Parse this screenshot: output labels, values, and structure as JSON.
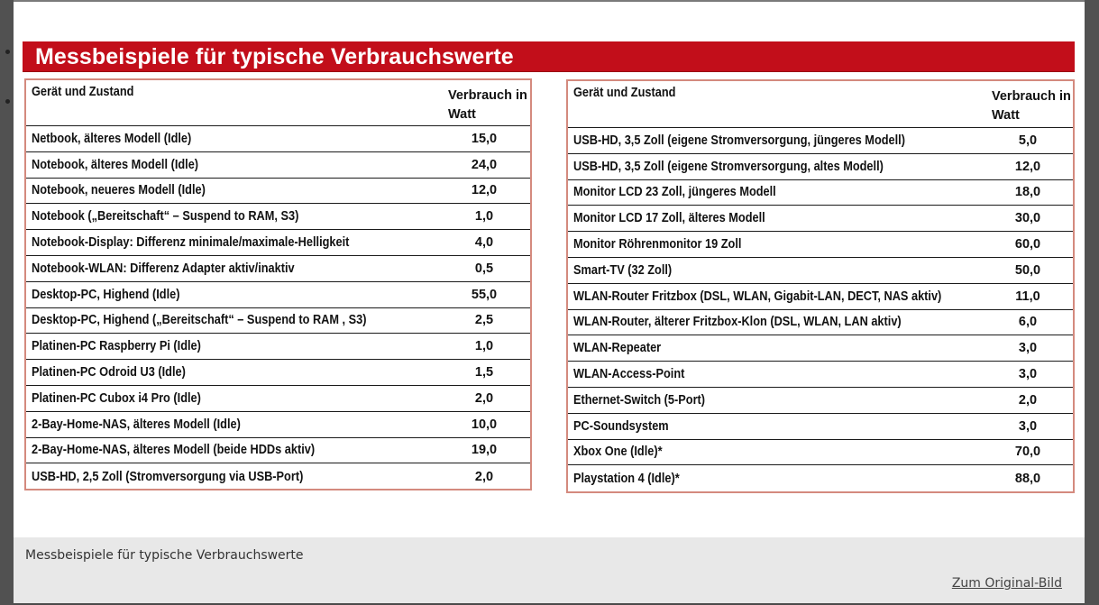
{
  "figure": {
    "title": "Messbeispiele für typische Verbrauchswerte"
  },
  "table_left": {
    "col_device": "Gerät und Zustand",
    "col_usage_line1": "Verbrauch in",
    "col_usage_line2": "Watt",
    "rows": [
      {
        "name": "Netbook, älteres Modell (Idle)",
        "value": "15,0"
      },
      {
        "name": "Notebook, älteres Modell (Idle)",
        "value": "24,0"
      },
      {
        "name": "Notebook, neueres Modell (Idle)",
        "value": "12,0"
      },
      {
        "name": "Notebook („Bereitschaft“ – Suspend to RAM, S3)",
        "value": "1,0"
      },
      {
        "name": "Notebook-Display: Differenz minimale/maximale-Helligkeit",
        "value": "4,0"
      },
      {
        "name": "Notebook-WLAN: Differenz Adapter aktiv/inaktiv",
        "value": "0,5"
      },
      {
        "name": "Desktop-PC, Highend (Idle)",
        "value": "55,0"
      },
      {
        "name": "Desktop-PC, Highend („Bereitschaft“ – Suspend to RAM , S3)",
        "value": "2,5"
      },
      {
        "name": "Platinen-PC Raspberry Pi (Idle)",
        "value": "1,0"
      },
      {
        "name": "Platinen-PC Odroid U3 (Idle)",
        "value": "1,5"
      },
      {
        "name": "Platinen-PC Cubox i4 Pro (Idle)",
        "value": "2,0"
      },
      {
        "name": "2-Bay-Home-NAS, älteres Modell (Idle)",
        "value": "10,0"
      },
      {
        "name": "2-Bay-Home-NAS, älteres Modell (beide HDDs aktiv)",
        "value": "19,0"
      },
      {
        "name": "USB-HD, 2,5 Zoll (Stromversorgung via USB-Port)",
        "value": "2,0"
      }
    ]
  },
  "table_right": {
    "col_device": "Gerät und Zustand",
    "col_usage_line1": "Verbrauch in",
    "col_usage_line2": "Watt",
    "rows": [
      {
        "name": "USB-HD, 3,5 Zoll (eigene Stromversorgung, jüngeres Modell)",
        "value": "5,0"
      },
      {
        "name": "USB-HD, 3,5 Zoll (eigene Stromversorgung, altes Modell)",
        "value": "12,0"
      },
      {
        "name": "Monitor LCD 23 Zoll, jüngeres Modell",
        "value": "18,0"
      },
      {
        "name": "Monitor LCD 17 Zoll, älteres Modell",
        "value": "30,0"
      },
      {
        "name": "Monitor Röhrenmonitor 19 Zoll",
        "value": "60,0"
      },
      {
        "name": "Smart-TV (32 Zoll)",
        "value": "50,0"
      },
      {
        "name": "WLAN-Router Fritzbox (DSL, WLAN, Gigabit-LAN, DECT, NAS aktiv)",
        "value": "11,0"
      },
      {
        "name": "WLAN-Router, älterer Fritzbox-Klon (DSL, WLAN, LAN aktiv)",
        "value": "6,0"
      },
      {
        "name": "WLAN-Repeater",
        "value": "3,0"
      },
      {
        "name": "WLAN-Access-Point",
        "value": "3,0"
      },
      {
        "name": "Ethernet-Switch (5-Port)",
        "value": "2,0"
      },
      {
        "name": "PC-Soundsystem",
        "value": "3,0"
      },
      {
        "name": "Xbox One (Idle)*",
        "value": "70,0"
      },
      {
        "name": "Playstation 4 (Idle)*",
        "value": "88,0"
      }
    ]
  },
  "caption": {
    "text": "Messbeispiele für typische Verbrauchswerte",
    "original_link": "Zum Original-Bild"
  },
  "colors": {
    "banner": "#c20e1a",
    "table_border": "#d48a7e"
  }
}
